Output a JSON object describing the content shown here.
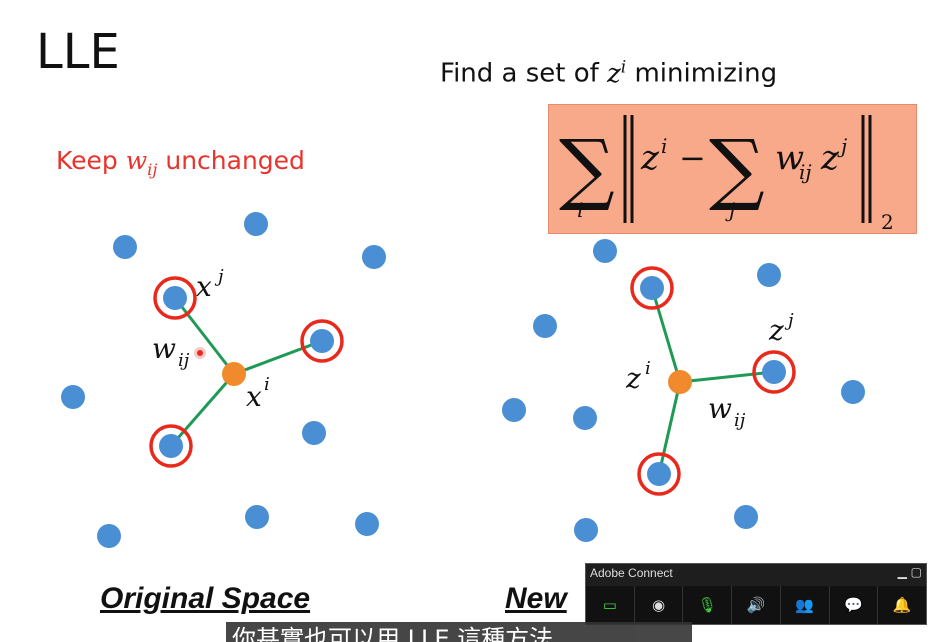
{
  "slide": {
    "title": "LLE",
    "subtitle_prefix": "Find a set of",
    "subtitle_var": "z",
    "subtitle_sup": "i",
    "subtitle_suffix": "minimizing",
    "keep_prefix": "Keep",
    "keep_var": "w",
    "keep_sub": "ij",
    "keep_suffix": "unchanged",
    "left_labels": {
      "xj": "x",
      "xj_sup": "j",
      "wij": "w",
      "wij_sub": "ij",
      "xi": "x",
      "xi_sup": "i"
    },
    "right_labels": {
      "zj": "z",
      "zj_sup": "j",
      "zi": "z",
      "zi_sup": "i",
      "wij": "w",
      "wij_sub": "ij"
    },
    "formula": {
      "sum1_sub": "i",
      "z": "z",
      "z_sup": "i",
      "minus": "−",
      "sum2_sub": "j",
      "w": "w",
      "w_sub": "ij",
      "z2": "z",
      "z2_sup": "j",
      "norm_sub": "2"
    },
    "original_label": "Original Space",
    "new_label": "New",
    "colors": {
      "point": "#4a8fd4",
      "center": "#f08a2c",
      "edge": "#1f9a55",
      "ring": "#e8291c",
      "box": "#f7a98a"
    }
  },
  "adobe_connect": {
    "title": "Adobe Connect",
    "controls": [
      "monitor-icon",
      "webcam-icon",
      "microphone-icon",
      "speaker-icon",
      "attendees-icon",
      "chat-icon",
      "notification-icon"
    ]
  },
  "caption": {
    "text": "你甚實也可以用 LLE 這種方法"
  }
}
